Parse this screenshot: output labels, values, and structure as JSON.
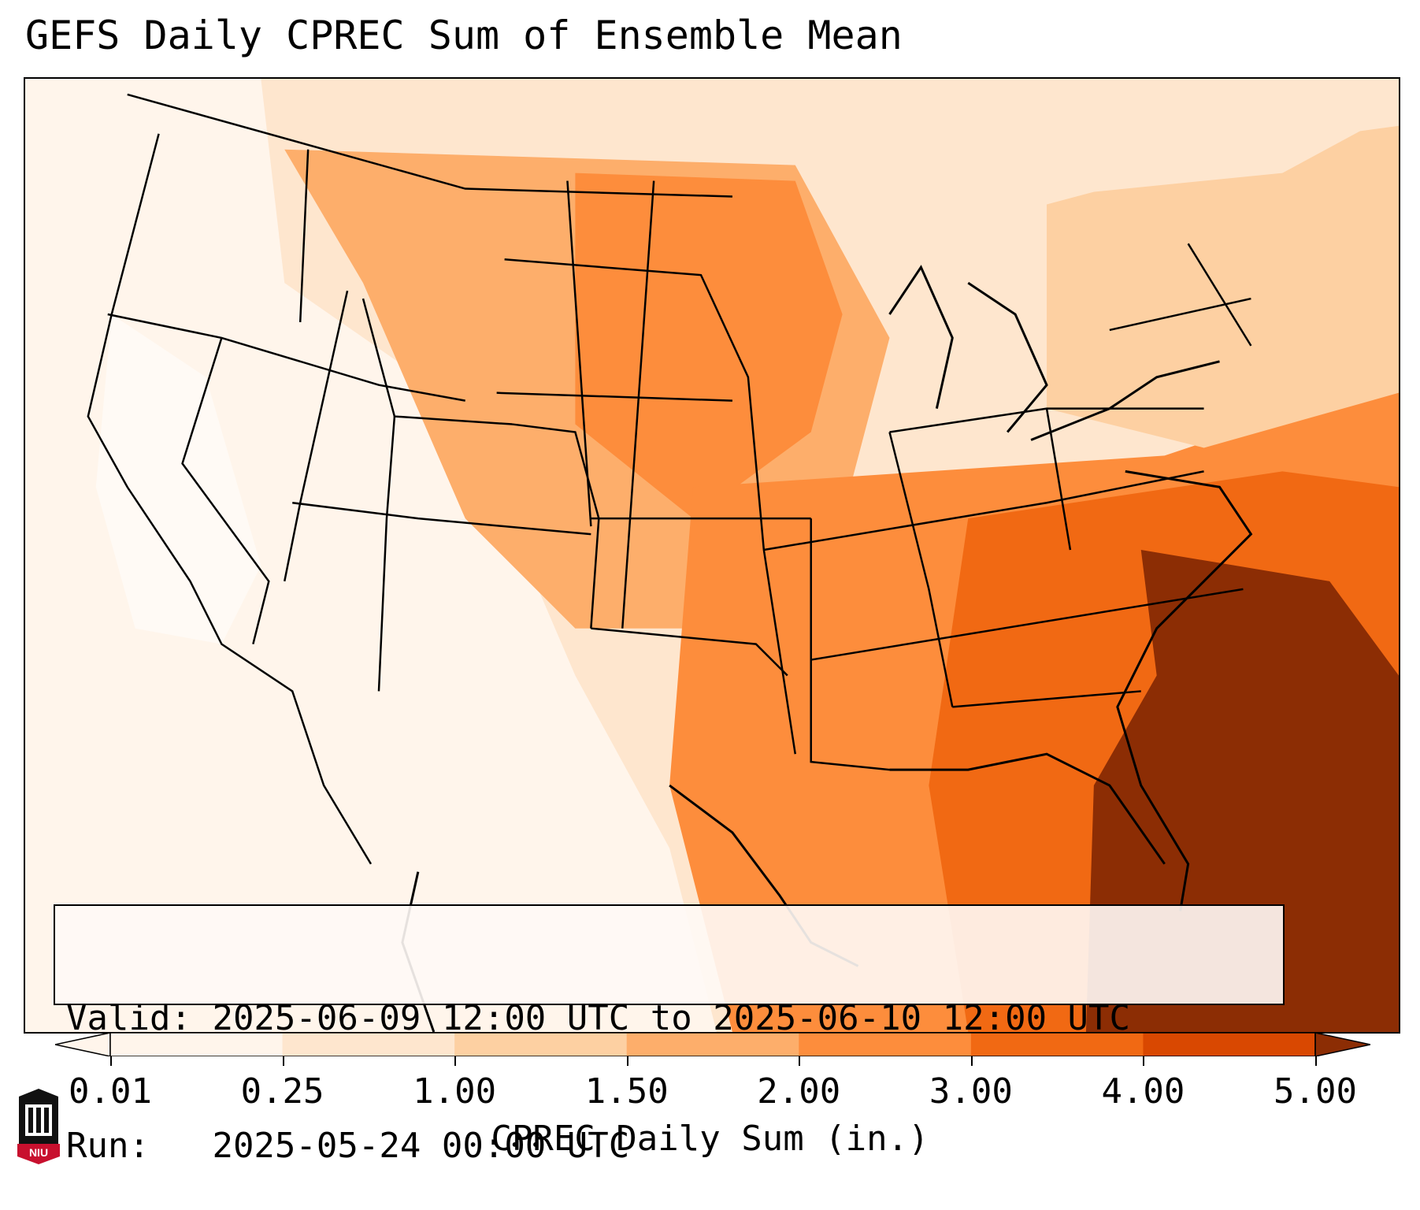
{
  "title": "GEFS Daily CPREC Sum of Ensemble Mean",
  "info": {
    "valid_label": "Valid:",
    "valid_value": "2025-06-09 12:00 UTC to 2025-06-10 12:00 UTC",
    "run_label": "Run:",
    "run_value": "2025-05-24 00:00 UTC"
  },
  "colorbar": {
    "label": "CPREC Daily Sum (in.)",
    "ticks": [
      "0.01",
      "0.25",
      "1.00",
      "1.50",
      "2.00",
      "3.00",
      "4.00",
      "5.00"
    ],
    "colors": [
      "#fff5eb",
      "#fee6ce",
      "#fdd0a2",
      "#fdae6b",
      "#fd8d3c",
      "#f16913",
      "#d94801",
      "#8c2d04"
    ],
    "extend": "both"
  },
  "logo": {
    "text": "NIU",
    "colors": {
      "primary": "#c8102e",
      "secondary": "#111111"
    }
  },
  "map": {
    "region": "Contiguous United States",
    "outline_color": "#000000"
  }
}
